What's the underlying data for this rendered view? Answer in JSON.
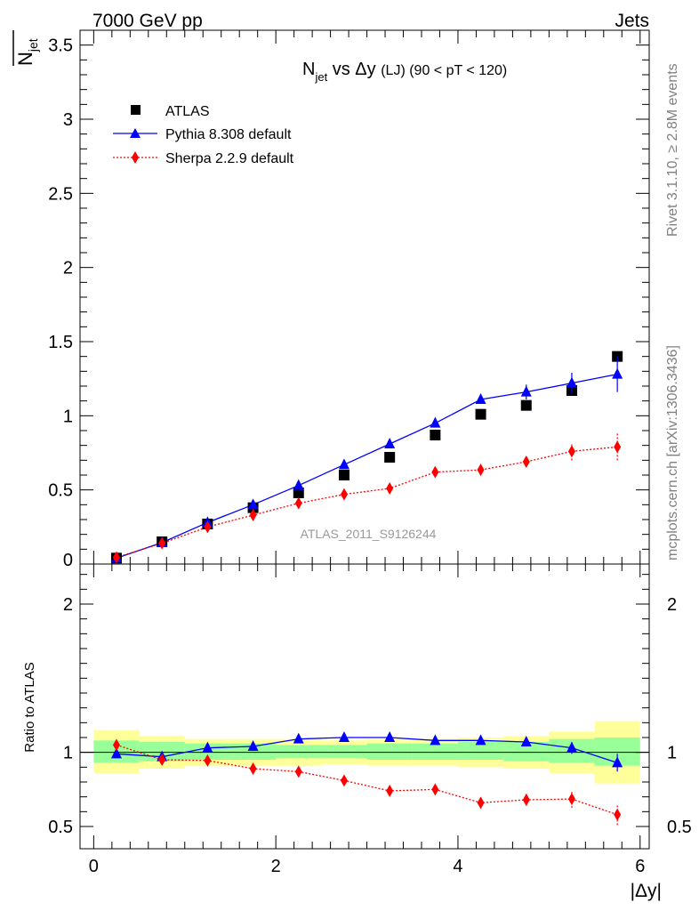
{
  "header": {
    "energy": "7000 GeV pp",
    "category": "Jets"
  },
  "side_labels": {
    "rivet": "Rivet 3.1.10, ≥ 2.8M events",
    "mcplots": "mcplots.cern.ch [arXiv:1306.3436]"
  },
  "analysis_id": "ATLAS_2011_S9126244",
  "colors": {
    "data": "#000000",
    "pythia": "#0000ff",
    "sherpa": "#ff0000",
    "band_inner": "#99ff99",
    "band_outer": "#ffff99"
  },
  "chart_data": [
    {
      "type": "scatter",
      "title": "N_jet vs Δy (LJ) (90 < pT < 120)",
      "title_parts": {
        "main": "N",
        "sub": "jet",
        "mid": " vs Δy ",
        "small": "(LJ) (90 < pT < 120)"
      },
      "xlabel": "|Δy|",
      "ylabel": "N_jet",
      "ylabel_parts": {
        "main": "N",
        "sub": "jet"
      },
      "xlim": [
        -0.15,
        6.1
      ],
      "ylim": [
        0,
        3.6
      ],
      "y_ticks": [
        "0",
        "0.5",
        "1",
        "1.5",
        "2",
        "2.5",
        "3",
        "3.5"
      ],
      "legend_position": "top-left",
      "x": [
        0.25,
        0.75,
        1.25,
        1.75,
        2.25,
        2.75,
        3.25,
        3.75,
        4.25,
        4.75,
        5.25,
        5.75
      ],
      "x_edges": [
        0,
        0.5,
        1,
        1.5,
        2,
        2.5,
        3,
        3.5,
        4,
        4.5,
        5,
        5.5,
        6
      ],
      "series": [
        {
          "name": "ATLAS",
          "marker": "square",
          "values": [
            0.04,
            0.15,
            0.27,
            0.38,
            0.48,
            0.6,
            0.72,
            0.87,
            1.01,
            1.07,
            1.17,
            1.4
          ]
        },
        {
          "name": "Pythia 8.308 default",
          "marker": "triangle",
          "values": [
            0.04,
            0.145,
            0.28,
            0.4,
            0.53,
            0.67,
            0.81,
            0.95,
            1.11,
            1.16,
            1.22,
            1.28
          ],
          "errors": [
            0.003,
            0.005,
            0.008,
            0.01,
            0.012,
            0.015,
            0.018,
            0.02,
            0.03,
            0.05,
            0.07,
            0.12
          ]
        },
        {
          "name": "Sherpa 2.2.9 default",
          "marker": "diamond",
          "values": [
            0.045,
            0.14,
            0.25,
            0.33,
            0.41,
            0.47,
            0.51,
            0.62,
            0.635,
            0.69,
            0.76,
            0.79
          ],
          "errors": [
            0.003,
            0.005,
            0.007,
            0.008,
            0.01,
            0.012,
            0.015,
            0.018,
            0.02,
            0.035,
            0.06,
            0.09
          ]
        }
      ]
    },
    {
      "type": "scatter",
      "ylabel": "Ratio to ATLAS",
      "xlabel": "|Δy|",
      "xlim": [
        -0.15,
        6.1
      ],
      "ylim": [
        0.35,
        2.27
      ],
      "y_ticks": [
        "0.5",
        "1",
        "2"
      ],
      "x_ticks": [
        "0",
        "2",
        "4",
        "6"
      ],
      "x": [
        0.25,
        0.75,
        1.25,
        1.75,
        2.25,
        2.75,
        3.25,
        3.75,
        4.25,
        4.75,
        5.25,
        5.75
      ],
      "x_edges": [
        0,
        0.5,
        1,
        1.5,
        2,
        2.5,
        3,
        3.5,
        4,
        4.5,
        5,
        5.5,
        6
      ],
      "band_inner": [
        [
          0.93,
          1.08
        ],
        [
          0.94,
          1.07
        ],
        [
          0.95,
          1.06
        ],
        [
          0.95,
          1.06
        ],
        [
          0.96,
          1.05
        ],
        [
          0.96,
          1.05
        ],
        [
          0.95,
          1.06
        ],
        [
          0.95,
          1.06
        ],
        [
          0.95,
          1.07
        ],
        [
          0.94,
          1.07
        ],
        [
          0.93,
          1.09
        ],
        [
          0.91,
          1.1
        ]
      ],
      "band_outer": [
        [
          0.86,
          1.15
        ],
        [
          0.89,
          1.11
        ],
        [
          0.91,
          1.09
        ],
        [
          0.91,
          1.09
        ],
        [
          0.91,
          1.09
        ],
        [
          0.92,
          1.08
        ],
        [
          0.91,
          1.09
        ],
        [
          0.91,
          1.09
        ],
        [
          0.9,
          1.1
        ],
        [
          0.89,
          1.11
        ],
        [
          0.86,
          1.14
        ],
        [
          0.79,
          1.21
        ]
      ],
      "series": [
        {
          "name": "Pythia 8.308 default",
          "marker": "triangle",
          "values": [
            0.99,
            0.97,
            1.03,
            1.04,
            1.09,
            1.1,
            1.1,
            1.08,
            1.08,
            1.07,
            1.03,
            0.93
          ],
          "errors": [
            0.03,
            0.015,
            0.01,
            0.008,
            0.008,
            0.008,
            0.008,
            0.008,
            0.015,
            0.025,
            0.04,
            0.06
          ]
        },
        {
          "name": "Sherpa 2.2.9 default",
          "marker": "diamond",
          "values": [
            1.05,
            0.95,
            0.945,
            0.89,
            0.87,
            0.81,
            0.74,
            0.75,
            0.66,
            0.68,
            0.685,
            0.58
          ],
          "errors": [
            0.03,
            0.012,
            0.01,
            0.008,
            0.01,
            0.01,
            0.01,
            0.015,
            0.025,
            0.04,
            0.06,
            0.07
          ]
        }
      ]
    }
  ]
}
